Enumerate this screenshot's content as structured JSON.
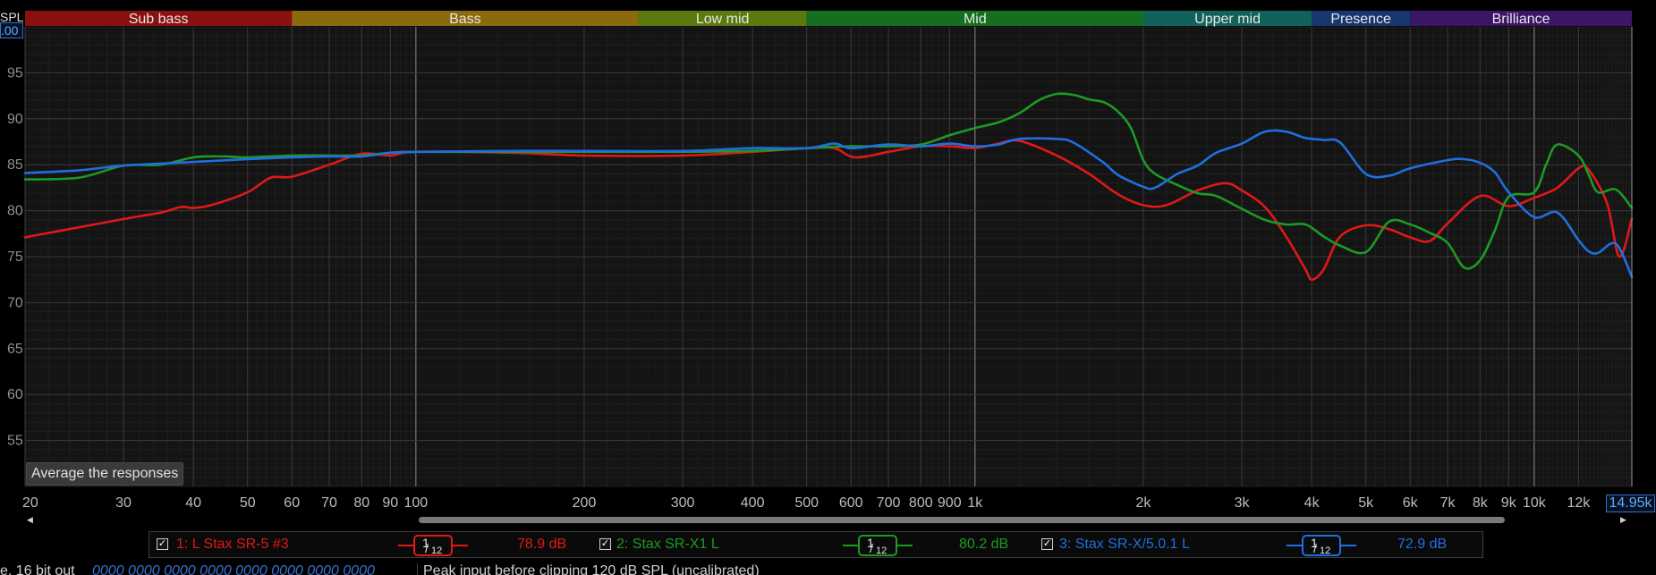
{
  "axis": {
    "y_title": "SPL",
    "y_max_label": ".00",
    "x_max_label": "14.95k"
  },
  "bands": [
    {
      "label": "Sub bass",
      "color": "#8b1010",
      "f0": 20,
      "f1": 60
    },
    {
      "label": "Bass",
      "color": "#8a6a0c",
      "f0": 60,
      "f1": 250
    },
    {
      "label": "Low mid",
      "color": "#5a7a0e",
      "f0": 250,
      "f1": 500
    },
    {
      "label": "Mid",
      "color": "#14701e",
      "f0": 500,
      "f1": 2000
    },
    {
      "label": "Upper mid",
      "color": "#12625c",
      "f0": 2000,
      "f1": 4000
    },
    {
      "label": "Presence",
      "color": "#183670",
      "f0": 4000,
      "f1": 6000
    },
    {
      "label": "Brilliance",
      "color": "#3b1566",
      "f0": 6000,
      "f1": 15000
    }
  ],
  "chart_data": {
    "type": "line",
    "title": "",
    "xlabel": "",
    "ylabel": "SPL",
    "xscale": "log",
    "xlim": [
      20,
      14950
    ],
    "ylim": [
      50,
      100
    ],
    "x_ticks": [
      {
        "value": 20,
        "label": "20"
      },
      {
        "value": 30,
        "label": "30"
      },
      {
        "value": 40,
        "label": "40"
      },
      {
        "value": 50,
        "label": "50"
      },
      {
        "value": 60,
        "label": "60"
      },
      {
        "value": 70,
        "label": "70"
      },
      {
        "value": 80,
        "label": "80"
      },
      {
        "value": 90,
        "label": "90"
      },
      {
        "value": 100,
        "label": "100"
      },
      {
        "value": 200,
        "label": "200"
      },
      {
        "value": 300,
        "label": "300"
      },
      {
        "value": 400,
        "label": "400"
      },
      {
        "value": 500,
        "label": "500"
      },
      {
        "value": 600,
        "label": "600"
      },
      {
        "value": 700,
        "label": "700"
      },
      {
        "value": 800,
        "label": "800"
      },
      {
        "value": 900,
        "label": "900"
      },
      {
        "value": 1000,
        "label": "1k"
      },
      {
        "value": 2000,
        "label": "2k"
      },
      {
        "value": 3000,
        "label": "3k"
      },
      {
        "value": 4000,
        "label": "4k"
      },
      {
        "value": 5000,
        "label": "5k"
      },
      {
        "value": 6000,
        "label": "6k"
      },
      {
        "value": 7000,
        "label": "7k"
      },
      {
        "value": 8000,
        "label": "8k"
      },
      {
        "value": 9000,
        "label": "9k"
      },
      {
        "value": 10000,
        "label": "10k"
      },
      {
        "value": 12000,
        "label": "12k"
      }
    ],
    "y_ticks": [
      {
        "value": 95,
        "label": "95"
      },
      {
        "value": 90,
        "label": "90"
      },
      {
        "value": 85,
        "label": "85"
      },
      {
        "value": 80,
        "label": "80"
      },
      {
        "value": 75,
        "label": "75"
      },
      {
        "value": 70,
        "label": "70"
      },
      {
        "value": 65,
        "label": "65"
      },
      {
        "value": 60,
        "label": "60"
      },
      {
        "value": 55,
        "label": "55"
      }
    ],
    "grid": true,
    "series": [
      {
        "name": "1: L Stax SR-5 #3",
        "color": "#e01818",
        "points": [
          [
            20,
            77.1
          ],
          [
            25,
            78.2
          ],
          [
            30,
            79.1
          ],
          [
            35,
            79.8
          ],
          [
            38,
            80.4
          ],
          [
            40,
            80.3
          ],
          [
            43,
            80.6
          ],
          [
            50,
            82.0
          ],
          [
            55,
            83.6
          ],
          [
            60,
            83.7
          ],
          [
            70,
            85.0
          ],
          [
            80,
            86.2
          ],
          [
            90,
            86.0
          ],
          [
            100,
            86.4
          ],
          [
            150,
            86.3
          ],
          [
            200,
            86.0
          ],
          [
            300,
            86.0
          ],
          [
            400,
            86.4
          ],
          [
            500,
            86.8
          ],
          [
            560,
            86.8
          ],
          [
            610,
            85.8
          ],
          [
            700,
            86.4
          ],
          [
            800,
            87.0
          ],
          [
            900,
            87.0
          ],
          [
            1000,
            86.8
          ],
          [
            1100,
            87.3
          ],
          [
            1200,
            87.6
          ],
          [
            1400,
            86.0
          ],
          [
            1600,
            84.0
          ],
          [
            1800,
            81.8
          ],
          [
            2000,
            80.6
          ],
          [
            2200,
            80.6
          ],
          [
            2500,
            82.2
          ],
          [
            2800,
            83.0
          ],
          [
            3000,
            82.2
          ],
          [
            3300,
            80.4
          ],
          [
            3600,
            77.2
          ],
          [
            3900,
            73.6
          ],
          [
            4000,
            72.5
          ],
          [
            4200,
            73.6
          ],
          [
            4500,
            77.2
          ],
          [
            5000,
            78.4
          ],
          [
            5500,
            78.0
          ],
          [
            6000,
            77.1
          ],
          [
            6500,
            76.7
          ],
          [
            7000,
            78.6
          ],
          [
            8000,
            81.6
          ],
          [
            9000,
            80.5
          ],
          [
            10000,
            81.4
          ],
          [
            11000,
            82.5
          ],
          [
            12000,
            84.6
          ],
          [
            12500,
            84.5
          ],
          [
            13500,
            80.8
          ],
          [
            14200,
            75.0
          ],
          [
            14950,
            79.1
          ]
        ]
      },
      {
        "name": "2: Stax SR-X1 L",
        "color": "#1c9a24",
        "points": [
          [
            20,
            83.4
          ],
          [
            25,
            83.6
          ],
          [
            30,
            84.9
          ],
          [
            35,
            85.0
          ],
          [
            40,
            85.8
          ],
          [
            45,
            85.9
          ],
          [
            50,
            85.8
          ],
          [
            60,
            86.0
          ],
          [
            70,
            86.0
          ],
          [
            80,
            86.0
          ],
          [
            90,
            86.3
          ],
          [
            100,
            86.4
          ],
          [
            150,
            86.4
          ],
          [
            200,
            86.4
          ],
          [
            300,
            86.4
          ],
          [
            400,
            86.5
          ],
          [
            500,
            86.8
          ],
          [
            600,
            87.0
          ],
          [
            700,
            87.0
          ],
          [
            800,
            87.2
          ],
          [
            900,
            88.2
          ],
          [
            1000,
            89.0
          ],
          [
            1100,
            89.6
          ],
          [
            1200,
            90.6
          ],
          [
            1300,
            92.0
          ],
          [
            1400,
            92.7
          ],
          [
            1500,
            92.6
          ],
          [
            1600,
            92.1
          ],
          [
            1700,
            91.8
          ],
          [
            1800,
            90.8
          ],
          [
            1900,
            89.0
          ],
          [
            2000,
            85.5
          ],
          [
            2100,
            84.0
          ],
          [
            2300,
            82.8
          ],
          [
            2500,
            81.9
          ],
          [
            2700,
            81.6
          ],
          [
            3000,
            80.2
          ],
          [
            3300,
            79.0
          ],
          [
            3600,
            78.5
          ],
          [
            3900,
            78.5
          ],
          [
            4200,
            77.2
          ],
          [
            4500,
            76.2
          ],
          [
            5000,
            75.5
          ],
          [
            5500,
            78.8
          ],
          [
            6000,
            78.5
          ],
          [
            6500,
            77.6
          ],
          [
            7000,
            76.5
          ],
          [
            7500,
            73.8
          ],
          [
            8000,
            74.6
          ],
          [
            8500,
            77.8
          ],
          [
            9000,
            81.5
          ],
          [
            10000,
            82.0
          ],
          [
            10500,
            85.0
          ],
          [
            11000,
            87.2
          ],
          [
            12000,
            86.0
          ],
          [
            12500,
            84.0
          ],
          [
            13000,
            82.0
          ],
          [
            14000,
            82.3
          ],
          [
            14950,
            80.3
          ]
        ]
      },
      {
        "name": "3: Stax SR-X/5.0.1 L",
        "color": "#1f6fe0",
        "points": [
          [
            20,
            84.1
          ],
          [
            25,
            84.4
          ],
          [
            30,
            84.9
          ],
          [
            40,
            85.3
          ],
          [
            50,
            85.6
          ],
          [
            60,
            85.8
          ],
          [
            70,
            85.9
          ],
          [
            80,
            85.9
          ],
          [
            90,
            86.3
          ],
          [
            100,
            86.4
          ],
          [
            150,
            86.5
          ],
          [
            200,
            86.5
          ],
          [
            300,
            86.5
          ],
          [
            400,
            86.8
          ],
          [
            500,
            86.8
          ],
          [
            560,
            87.3
          ],
          [
            600,
            86.8
          ],
          [
            700,
            87.2
          ],
          [
            800,
            87.0
          ],
          [
            900,
            87.3
          ],
          [
            1000,
            87.0
          ],
          [
            1100,
            87.2
          ],
          [
            1200,
            87.8
          ],
          [
            1400,
            87.8
          ],
          [
            1500,
            87.4
          ],
          [
            1700,
            85.2
          ],
          [
            1800,
            83.9
          ],
          [
            2000,
            82.6
          ],
          [
            2100,
            82.5
          ],
          [
            2300,
            84.0
          ],
          [
            2500,
            84.9
          ],
          [
            2700,
            86.3
          ],
          [
            3000,
            87.3
          ],
          [
            3300,
            88.6
          ],
          [
            3600,
            88.6
          ],
          [
            3900,
            87.9
          ],
          [
            4200,
            87.7
          ],
          [
            4500,
            87.4
          ],
          [
            5000,
            84.0
          ],
          [
            5500,
            83.8
          ],
          [
            6000,
            84.6
          ],
          [
            7000,
            85.5
          ],
          [
            7500,
            85.6
          ],
          [
            8000,
            85.2
          ],
          [
            8500,
            84.2
          ],
          [
            9000,
            82.0
          ],
          [
            10000,
            79.3
          ],
          [
            11000,
            79.8
          ],
          [
            12000,
            76.8
          ],
          [
            12500,
            75.6
          ],
          [
            13000,
            75.4
          ],
          [
            14000,
            76.4
          ],
          [
            14950,
            72.8
          ]
        ]
      }
    ]
  },
  "legend": {
    "items": [
      {
        "label": "1: L Stax SR-5 #3",
        "value": "78.9 dB",
        "color": "#e01818",
        "smoothing_num": "1",
        "smoothing_den": "12"
      },
      {
        "label": "2: Stax SR-X1 L",
        "value": "80.2 dB",
        "color": "#1c9a24",
        "smoothing_num": "1",
        "smoothing_den": "12"
      },
      {
        "label": "3: Stax SR-X/5.0.1 L",
        "value": "72.9 dB",
        "color": "#1f6fe0",
        "smoothing_num": "1",
        "smoothing_den": "12"
      }
    ]
  },
  "controls": {
    "average_button": "Average the responses"
  },
  "status": {
    "left": "e, 16 bit out",
    "codes": "0000 0000 0000 0000 0000 0000 0000 0000",
    "right": "Peak input before clipping 120 dB SPL (uncalibrated)"
  }
}
